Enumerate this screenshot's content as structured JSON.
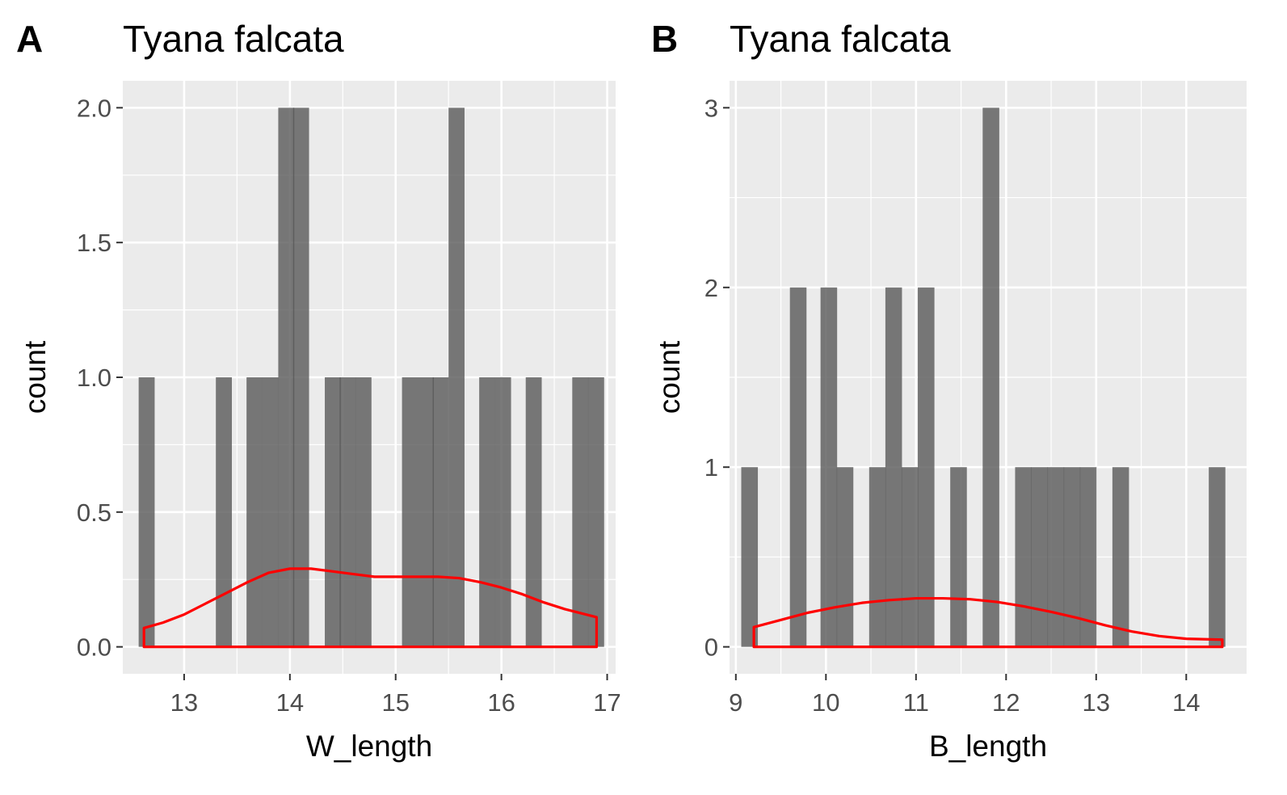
{
  "chart_data": [
    {
      "type": "bar",
      "panel_tag": "A",
      "title": "Tyana falcata",
      "xlabel": "W_length",
      "ylabel": "count",
      "xlim": [
        12.42,
        17.08
      ],
      "ylim": [
        -0.1,
        2.1
      ],
      "xticks": [
        13,
        14,
        15,
        16,
        17
      ],
      "yticks": [
        0.0,
        0.5,
        1.0,
        1.5,
        2.0
      ],
      "ytick_labels": [
        "0.0",
        "0.5",
        "1.0",
        "1.5",
        "2.0"
      ],
      "bin_width": 0.1467,
      "bins": [
        {
          "x0": 12.57,
          "count": 1
        },
        {
          "x0": 13.3,
          "count": 1
        },
        {
          "x0": 13.59,
          "count": 1
        },
        {
          "x0": 13.74,
          "count": 1
        },
        {
          "x0": 13.89,
          "count": 2
        },
        {
          "x0": 14.03,
          "count": 2
        },
        {
          "x0": 14.33,
          "count": 1
        },
        {
          "x0": 14.47,
          "count": 1
        },
        {
          "x0": 14.62,
          "count": 1
        },
        {
          "x0": 15.06,
          "count": 1
        },
        {
          "x0": 15.21,
          "count": 1
        },
        {
          "x0": 15.35,
          "count": 1
        },
        {
          "x0": 15.5,
          "count": 2
        },
        {
          "x0": 15.79,
          "count": 1
        },
        {
          "x0": 15.94,
          "count": 1
        },
        {
          "x0": 16.23,
          "count": 1
        },
        {
          "x0": 16.67,
          "count": 1
        },
        {
          "x0": 16.82,
          "count": 1
        }
      ],
      "density": {
        "color": "#ff0000",
        "x": [
          12.62,
          12.8,
          13.0,
          13.2,
          13.4,
          13.6,
          13.8,
          14.0,
          14.2,
          14.4,
          14.6,
          14.8,
          15.0,
          15.2,
          15.4,
          15.6,
          15.8,
          16.0,
          16.2,
          16.4,
          16.6,
          16.9
        ],
        "y": [
          0.07,
          0.09,
          0.12,
          0.16,
          0.2,
          0.24,
          0.275,
          0.29,
          0.29,
          0.28,
          0.27,
          0.26,
          0.26,
          0.26,
          0.26,
          0.255,
          0.24,
          0.22,
          0.195,
          0.165,
          0.14,
          0.11
        ]
      }
    },
    {
      "type": "bar",
      "panel_tag": "B",
      "title": "Tyana falcata",
      "xlabel": "B_length",
      "ylabel": "count",
      "xlim": [
        8.93,
        14.67
      ],
      "ylim": [
        -0.15,
        3.15
      ],
      "xticks": [
        9,
        10,
        11,
        12,
        13,
        14
      ],
      "yticks": [
        0,
        1,
        2,
        3
      ],
      "ytick_labels": [
        "0",
        "1",
        "2",
        "3"
      ],
      "bin_width": 0.179,
      "bins": [
        {
          "x0": 9.06,
          "count": 1
        },
        {
          "x0": 9.6,
          "count": 2
        },
        {
          "x0": 9.94,
          "count": 2
        },
        {
          "x0": 10.12,
          "count": 1
        },
        {
          "x0": 10.48,
          "count": 1
        },
        {
          "x0": 10.66,
          "count": 2
        },
        {
          "x0": 10.84,
          "count": 1
        },
        {
          "x0": 11.02,
          "count": 2
        },
        {
          "x0": 11.38,
          "count": 1
        },
        {
          "x0": 11.74,
          "count": 3
        },
        {
          "x0": 12.1,
          "count": 1
        },
        {
          "x0": 12.28,
          "count": 1
        },
        {
          "x0": 12.46,
          "count": 1
        },
        {
          "x0": 12.64,
          "count": 1
        },
        {
          "x0": 12.82,
          "count": 1
        },
        {
          "x0": 13.18,
          "count": 1
        },
        {
          "x0": 14.25,
          "count": 1
        }
      ],
      "density": {
        "color": "#ff0000",
        "x": [
          9.2,
          9.5,
          9.8,
          10.1,
          10.4,
          10.7,
          11.0,
          11.3,
          11.6,
          11.9,
          12.2,
          12.5,
          12.8,
          13.1,
          13.4,
          13.7,
          14.0,
          14.4
        ],
        "y": [
          0.11,
          0.15,
          0.19,
          0.22,
          0.245,
          0.26,
          0.27,
          0.27,
          0.265,
          0.25,
          0.225,
          0.195,
          0.16,
          0.12,
          0.085,
          0.06,
          0.045,
          0.04
        ]
      }
    }
  ]
}
